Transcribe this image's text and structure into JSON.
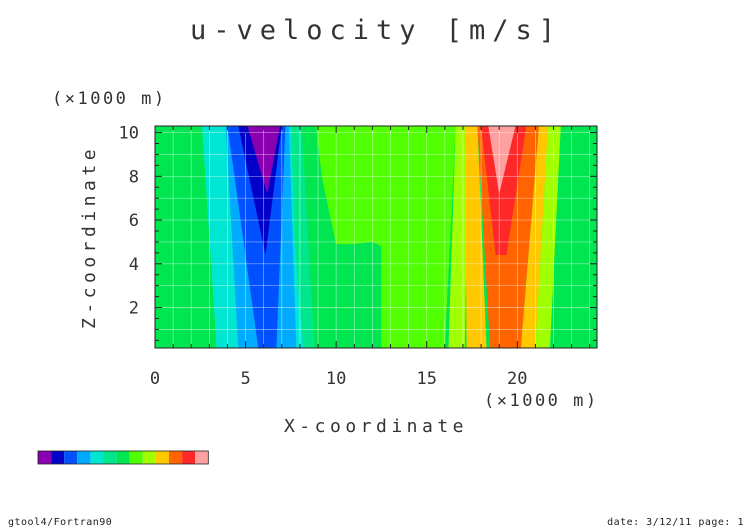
{
  "chart_data": {
    "type": "contour",
    "title": "u-velocity [m/s]",
    "xlabel": "X-coordinate",
    "ylabel": "Z-coordinate",
    "x_unit": "(×1000 m)",
    "y_unit": "(×1000 m)",
    "xlim": [
      0,
      24.4
    ],
    "ylim": [
      0.15,
      10.3
    ],
    "x_ticks": [
      {
        "v": 0,
        "label": "0"
      },
      {
        "v": 5,
        "label": "5"
      },
      {
        "v": 10,
        "label": "10"
      },
      {
        "v": 15,
        "label": "15"
      },
      {
        "v": 20,
        "label": "20"
      }
    ],
    "y_ticks": [
      {
        "v": 2,
        "label": "2"
      },
      {
        "v": 4,
        "label": "4"
      },
      {
        "v": 6,
        "label": "6"
      },
      {
        "v": 8,
        "label": "8"
      },
      {
        "v": 10,
        "label": "10"
      }
    ],
    "grid": true,
    "base_band": 6,
    "level_colors": [
      "#8a00b0",
      "#0000c8",
      "#0050ff",
      "#00aaff",
      "#00e6d2",
      "#00e68c",
      "#00e650",
      "#50ff00",
      "#a0ff00",
      "#ffc800",
      "#ff6400",
      "#ff2828",
      "#ffa0a0"
    ],
    "regions": [
      {
        "band": 4,
        "pts": [
          [
            2.6,
            10.3
          ],
          [
            3.4,
            0.15
          ],
          [
            8.8,
            0.15
          ],
          [
            8.0,
            10.3
          ]
        ]
      },
      {
        "band": 3,
        "pts": [
          [
            3.9,
            10.3
          ],
          [
            4.6,
            0.15
          ],
          [
            7.8,
            0.15
          ],
          [
            7.4,
            10.3
          ]
        ]
      },
      {
        "band": 2,
        "pts": [
          [
            4.0,
            10.3
          ],
          [
            5.7,
            0.15
          ],
          [
            6.7,
            0.15
          ],
          [
            7.2,
            10.3
          ]
        ]
      },
      {
        "band": 1,
        "pts": [
          [
            4.6,
            10.3
          ],
          [
            6.1,
            4.4
          ],
          [
            7.0,
            10.3
          ]
        ]
      },
      {
        "band": 0,
        "pts": [
          [
            5.1,
            10.3
          ],
          [
            6.2,
            7.2
          ],
          [
            6.9,
            10.3
          ]
        ]
      },
      {
        "band": 5,
        "pts": [
          [
            7.5,
            10.3
          ],
          [
            7.7,
            5.0
          ],
          [
            8.2,
            0.15
          ],
          [
            8.8,
            0.15
          ],
          [
            8.1,
            10.3
          ]
        ]
      },
      {
        "band": 7,
        "pts": [
          [
            8.9,
            10.3
          ],
          [
            9.2,
            8.0
          ],
          [
            10.0,
            4.9
          ],
          [
            11.0,
            4.9
          ],
          [
            12.0,
            5.0
          ],
          [
            12.5,
            4.8
          ],
          [
            12.5,
            0.15
          ],
          [
            16.0,
            0.15
          ],
          [
            16.6,
            10.3
          ]
        ]
      },
      {
        "band": 8,
        "pts": [
          [
            16.6,
            10.3
          ],
          [
            16.2,
            0.15
          ],
          [
            17.1,
            0.15
          ],
          [
            17.3,
            10.3
          ]
        ]
      },
      {
        "band": 9,
        "pts": [
          [
            17.1,
            10.3
          ],
          [
            17.2,
            0.15
          ],
          [
            18.3,
            0.15
          ],
          [
            17.8,
            10.3
          ]
        ]
      },
      {
        "band": 10,
        "pts": [
          [
            17.8,
            10.3
          ],
          [
            18.5,
            0.15
          ],
          [
            20.2,
            0.15
          ],
          [
            21.2,
            10.3
          ]
        ]
      },
      {
        "band": 11,
        "pts": [
          [
            18.0,
            10.3
          ],
          [
            18.8,
            4.4
          ],
          [
            19.4,
            4.4
          ],
          [
            20.5,
            10.3
          ]
        ]
      },
      {
        "band": 12,
        "pts": [
          [
            18.4,
            10.3
          ],
          [
            19.0,
            7.2
          ],
          [
            19.9,
            10.3
          ]
        ]
      },
      {
        "band": 9,
        "pts": [
          [
            21.2,
            10.3
          ],
          [
            20.2,
            0.15
          ],
          [
            21.0,
            0.15
          ],
          [
            21.7,
            10.3
          ]
        ]
      },
      {
        "band": 8,
        "pts": [
          [
            21.7,
            10.3
          ],
          [
            21.0,
            0.15
          ],
          [
            21.8,
            0.15
          ],
          [
            22.4,
            10.3
          ]
        ]
      }
    ]
  },
  "footer": {
    "left": "gtool4/Fortran90",
    "right": "date: 3/12/11 page: 1"
  }
}
